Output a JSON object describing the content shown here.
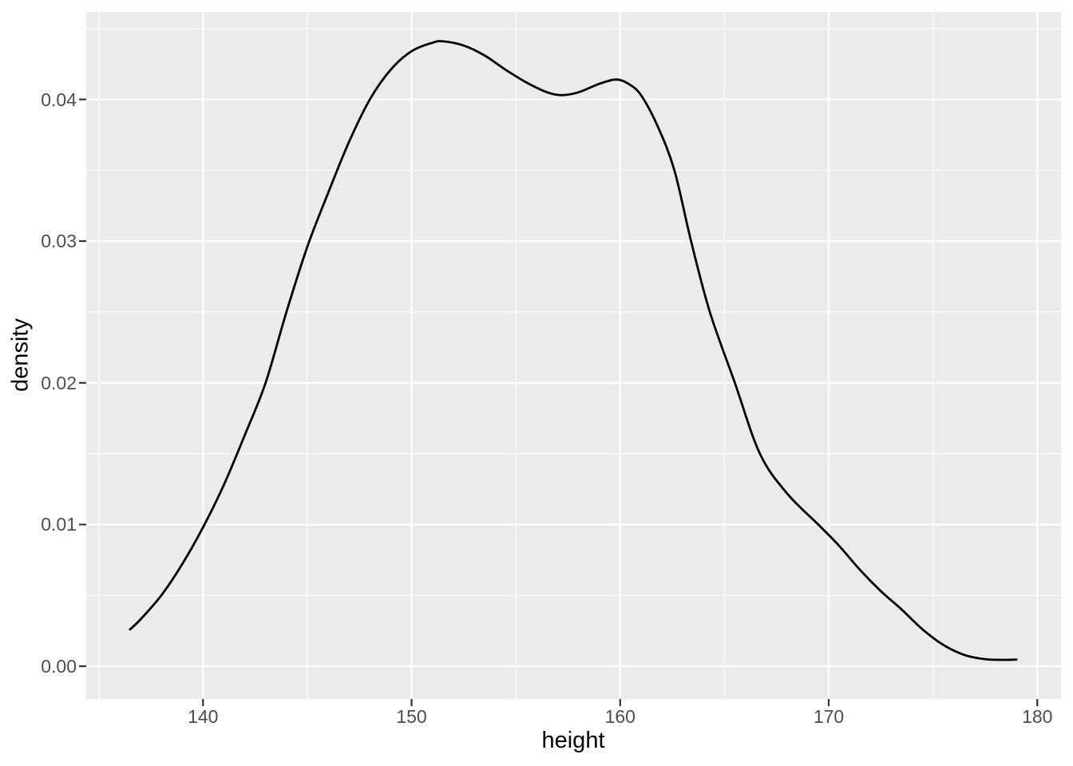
{
  "figure": {
    "background": "#FFFFFF"
  },
  "chart_data": {
    "type": "line",
    "curve_kind": "kernel-density-estimate",
    "title": "",
    "xlabel": "height",
    "ylabel": "density",
    "grid": "on",
    "legend": "none",
    "xlim": [
      134.4,
      181.15
    ],
    "ylim": [
      -0.00231,
      0.04617
    ],
    "x_ticks": [
      {
        "value": 140,
        "label": "140"
      },
      {
        "value": 150,
        "label": "150"
      },
      {
        "value": 160,
        "label": "160"
      },
      {
        "value": 170,
        "label": "170"
      },
      {
        "value": 180,
        "label": "180"
      }
    ],
    "y_ticks": [
      {
        "value": 0.0,
        "label": "0.00"
      },
      {
        "value": 0.01,
        "label": "0.01"
      },
      {
        "value": 0.02,
        "label": "0.02"
      },
      {
        "value": 0.03,
        "label": "0.03"
      },
      {
        "value": 0.04,
        "label": "0.04"
      }
    ],
    "x_minor_gridlines": [
      135,
      145,
      155,
      165,
      175
    ],
    "y_minor_gridlines": [
      0.005,
      0.015,
      0.025,
      0.035,
      0.045
    ],
    "colors": {
      "panel_background": "#EBEBEB",
      "gridline": "#FFFFFF",
      "curve": "#000000",
      "tick_mark": "#333333",
      "tick_label": "#4D4D4D",
      "axis_title": "#000000"
    },
    "series": [
      {
        "name": "density",
        "points": [
          [
            136.5,
            0.0026
          ],
          [
            137.0,
            0.0033
          ],
          [
            138.0,
            0.005
          ],
          [
            139.0,
            0.0072
          ],
          [
            140.0,
            0.0098
          ],
          [
            141.0,
            0.0128
          ],
          [
            142.0,
            0.0163
          ],
          [
            143.0,
            0.02
          ],
          [
            144.0,
            0.025
          ],
          [
            145.0,
            0.0296
          ],
          [
            146.0,
            0.0334
          ],
          [
            147.0,
            0.037
          ],
          [
            148.0,
            0.04
          ],
          [
            149.0,
            0.0421
          ],
          [
            150.0,
            0.0434
          ],
          [
            151.0,
            0.044
          ],
          [
            151.5,
            0.0441
          ],
          [
            152.5,
            0.0438
          ],
          [
            153.5,
            0.0431
          ],
          [
            154.5,
            0.0421
          ],
          [
            155.5,
            0.0412
          ],
          [
            156.5,
            0.0405
          ],
          [
            157.2,
            0.0403
          ],
          [
            158.0,
            0.0405
          ],
          [
            159.0,
            0.0411
          ],
          [
            159.8,
            0.0414
          ],
          [
            160.4,
            0.0411
          ],
          [
            161.0,
            0.0403
          ],
          [
            161.8,
            0.0381
          ],
          [
            162.6,
            0.035
          ],
          [
            163.4,
            0.03
          ],
          [
            164.3,
            0.025
          ],
          [
            165.5,
            0.02
          ],
          [
            166.7,
            0.015
          ],
          [
            168.0,
            0.0122
          ],
          [
            169.5,
            0.01
          ],
          [
            170.5,
            0.0085
          ],
          [
            171.5,
            0.0068
          ],
          [
            172.5,
            0.0053
          ],
          [
            173.5,
            0.004
          ],
          [
            174.5,
            0.0026
          ],
          [
            175.5,
            0.0015
          ],
          [
            176.5,
            0.0008
          ],
          [
            177.5,
            0.0005
          ],
          [
            178.3,
            0.00045
          ],
          [
            179.0,
            0.00047
          ]
        ]
      }
    ]
  }
}
